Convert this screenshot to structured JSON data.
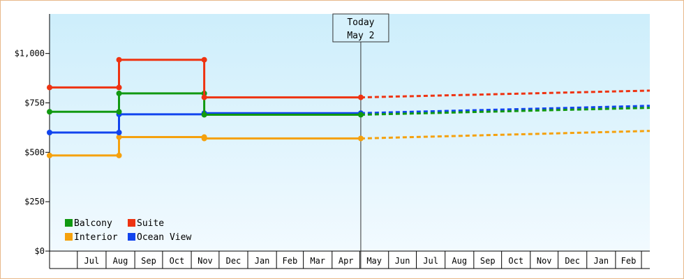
{
  "chart_data": {
    "type": "line",
    "title": "",
    "xlabel": "",
    "ylabel": "",
    "ylim": [
      0,
      1200
    ],
    "y_ticks": [
      {
        "value": 0,
        "label": "$0"
      },
      {
        "value": 250,
        "label": "$250"
      },
      {
        "value": 500,
        "label": "$500"
      },
      {
        "value": 750,
        "label": "$750"
      },
      {
        "value": 1000,
        "label": "$1,000"
      }
    ],
    "x_range": [
      "2023-06-01",
      "2025-03-10"
    ],
    "x_ticks": [
      {
        "label": "Jul",
        "date": "2023-07-15"
      },
      {
        "label": "Aug",
        "date": "2023-08-15"
      },
      {
        "label": "Sep",
        "date": "2023-09-15"
      },
      {
        "label": "Oct",
        "date": "2023-10-15"
      },
      {
        "label": "Nov",
        "date": "2023-11-15"
      },
      {
        "label": "Dec",
        "date": "2023-12-15"
      },
      {
        "label": "Jan",
        "date": "2024-01-15"
      },
      {
        "label": "Feb",
        "date": "2024-02-15"
      },
      {
        "label": "Mar",
        "date": "2024-03-15"
      },
      {
        "label": "Apr",
        "date": "2024-04-15"
      },
      {
        "label": "May",
        "date": "2024-05-15"
      },
      {
        "label": "Jun",
        "date": "2024-06-15"
      },
      {
        "label": "Jul",
        "date": "2024-07-15"
      },
      {
        "label": "Aug",
        "date": "2024-08-15"
      },
      {
        "label": "Sep",
        "date": "2024-09-15"
      },
      {
        "label": "Oct",
        "date": "2024-10-15"
      },
      {
        "label": "Nov",
        "date": "2024-11-15"
      },
      {
        "label": "Dec",
        "date": "2024-12-15"
      },
      {
        "label": "Jan",
        "date": "2025-01-15"
      },
      {
        "label": "Feb",
        "date": "2025-02-15"
      }
    ],
    "today": {
      "line1": "Today",
      "line2": "May 2",
      "date": "2024-05-02"
    },
    "grid": false,
    "legend_position": "bottom-left",
    "background": [
      "#cdeefb",
      "#f2faff"
    ],
    "series": [
      {
        "name": "Balcony",
        "color": "#119911",
        "history": [
          {
            "x": "2023-06-01",
            "y": 705
          },
          {
            "x": "2023-08-15",
            "y": 705
          },
          {
            "x": "2023-08-15",
            "y": 798
          },
          {
            "x": "2023-11-15",
            "y": 798
          },
          {
            "x": "2023-11-15",
            "y": 690
          },
          {
            "x": "2024-05-02",
            "y": 690
          }
        ],
        "forecast": [
          {
            "x": "2024-05-02",
            "y": 690
          },
          {
            "x": "2025-03-10",
            "y": 725
          }
        ]
      },
      {
        "name": "Suite",
        "color": "#ee3311",
        "history": [
          {
            "x": "2023-06-01",
            "y": 828
          },
          {
            "x": "2023-08-15",
            "y": 828
          },
          {
            "x": "2023-08-15",
            "y": 968
          },
          {
            "x": "2023-11-15",
            "y": 968
          },
          {
            "x": "2023-11-15",
            "y": 778
          },
          {
            "x": "2024-05-02",
            "y": 778
          }
        ],
        "forecast": [
          {
            "x": "2024-05-02",
            "y": 778
          },
          {
            "x": "2025-03-10",
            "y": 812
          }
        ]
      },
      {
        "name": "Interior",
        "color": "#f5a10d",
        "history": [
          {
            "x": "2023-06-01",
            "y": 484
          },
          {
            "x": "2023-08-15",
            "y": 484
          },
          {
            "x": "2023-08-15",
            "y": 577
          },
          {
            "x": "2023-11-15",
            "y": 577
          },
          {
            "x": "2023-11-15",
            "y": 570
          },
          {
            "x": "2024-05-02",
            "y": 570
          }
        ],
        "forecast": [
          {
            "x": "2024-05-02",
            "y": 570
          },
          {
            "x": "2025-03-10",
            "y": 608
          }
        ]
      },
      {
        "name": "Ocean View",
        "color": "#1144ee",
        "history": [
          {
            "x": "2023-06-01",
            "y": 600
          },
          {
            "x": "2023-08-15",
            "y": 600
          },
          {
            "x": "2023-08-15",
            "y": 692
          },
          {
            "x": "2023-11-15",
            "y": 692
          },
          {
            "x": "2023-11-15",
            "y": 698
          },
          {
            "x": "2024-05-02",
            "y": 698
          }
        ],
        "forecast": [
          {
            "x": "2024-05-02",
            "y": 698
          },
          {
            "x": "2025-03-10",
            "y": 735
          }
        ]
      }
    ],
    "legend_order": [
      "Balcony",
      "Suite",
      "Interior",
      "Ocean View"
    ]
  }
}
